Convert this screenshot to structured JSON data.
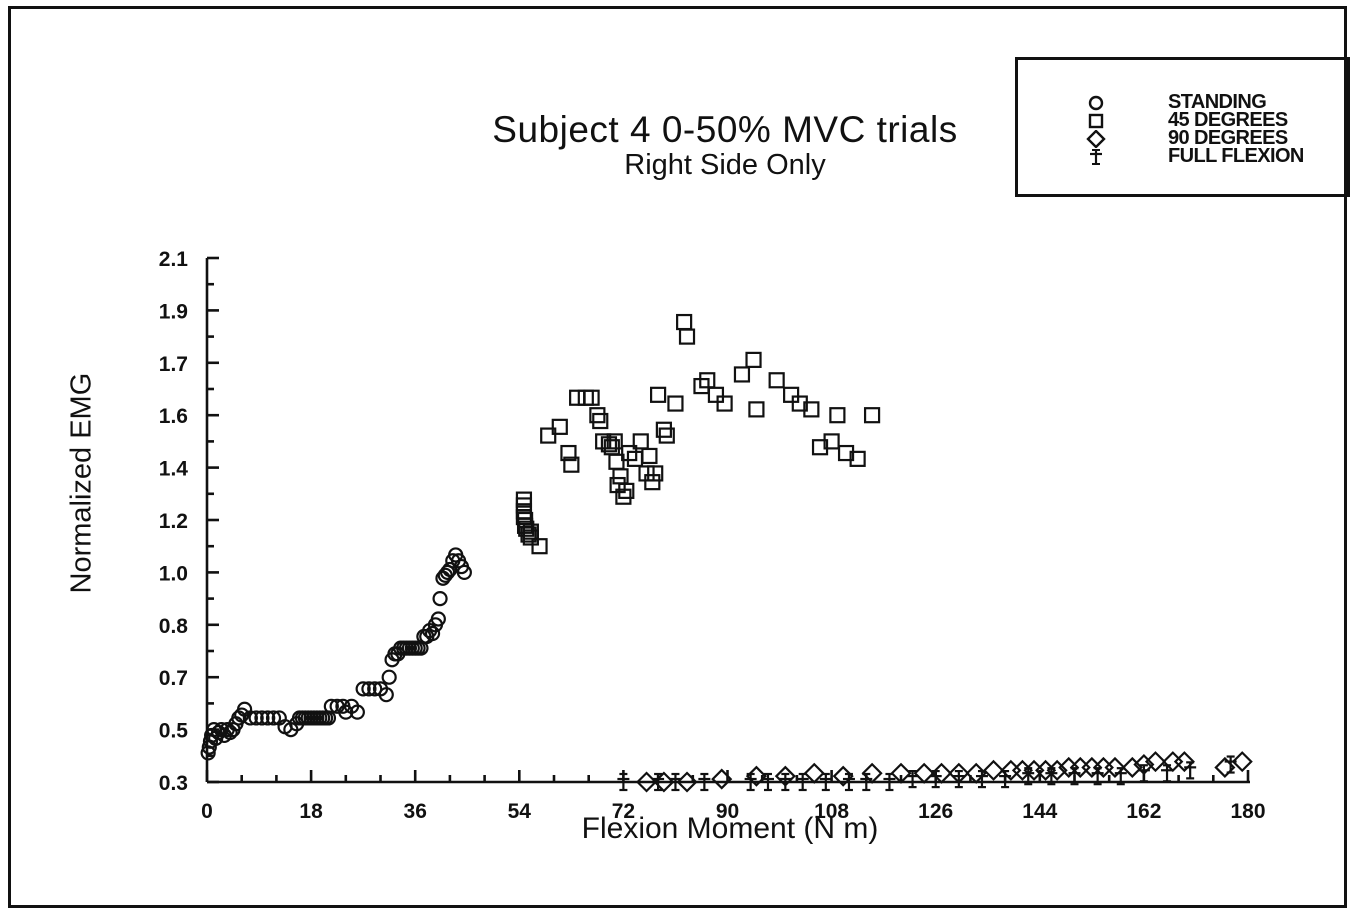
{
  "chart_data": {
    "type": "scatter",
    "title": "Subject 4  0-50% MVC trials",
    "subtitle": "Right Side Only",
    "xlabel": "Flexion Moment (N m)",
    "ylabel": "Normalized EMG",
    "xlim": [
      0,
      180
    ],
    "ylim": [
      0.3,
      2.1
    ],
    "x_ticks": [
      0,
      18,
      36,
      54,
      72,
      90,
      108,
      126,
      144,
      162,
      180
    ],
    "x_tick_labels": [
      "0",
      "18",
      "36",
      "54",
      "72",
      "90",
      "108",
      "126",
      "144",
      "162",
      "180"
    ],
    "y_tick_labels": [
      "0.3",
      "0.5",
      "0.7",
      "0.8",
      "1.0",
      "1.2",
      "1.4",
      "1.6",
      "1.7",
      "1.9",
      "2.1"
    ],
    "legend_position": "top-right",
    "series": [
      {
        "name": "STANDING",
        "marker": "circle",
        "points": [
          [
            0.2,
            0.4
          ],
          [
            0.4,
            0.42
          ],
          [
            0.6,
            0.44
          ],
          [
            0.8,
            0.46
          ],
          [
            1.2,
            0.48
          ],
          [
            1.5,
            0.45
          ],
          [
            2.0,
            0.47
          ],
          [
            2.5,
            0.48
          ],
          [
            3.0,
            0.46
          ],
          [
            3.5,
            0.48
          ],
          [
            4.0,
            0.47
          ],
          [
            4.5,
            0.48
          ],
          [
            5.0,
            0.5
          ],
          [
            5.5,
            0.52
          ],
          [
            6.0,
            0.53
          ],
          [
            6.5,
            0.55
          ],
          [
            7.5,
            0.52
          ],
          [
            8.5,
            0.52
          ],
          [
            9.5,
            0.52
          ],
          [
            10.5,
            0.52
          ],
          [
            11.5,
            0.52
          ],
          [
            12.5,
            0.52
          ],
          [
            13.5,
            0.49
          ],
          [
            14.5,
            0.48
          ],
          [
            15.5,
            0.5
          ],
          [
            16.0,
            0.52
          ],
          [
            16.5,
            0.52
          ],
          [
            17.0,
            0.52
          ],
          [
            17.5,
            0.52
          ],
          [
            18.0,
            0.52
          ],
          [
            18.5,
            0.52
          ],
          [
            19.0,
            0.52
          ],
          [
            19.5,
            0.52
          ],
          [
            20.0,
            0.52
          ],
          [
            20.5,
            0.52
          ],
          [
            21.0,
            0.52
          ],
          [
            21.5,
            0.56
          ],
          [
            22.5,
            0.56
          ],
          [
            23.5,
            0.56
          ],
          [
            24.0,
            0.54
          ],
          [
            25.0,
            0.56
          ],
          [
            26.0,
            0.54
          ],
          [
            27.0,
            0.62
          ],
          [
            28.0,
            0.62
          ],
          [
            29.0,
            0.62
          ],
          [
            30.0,
            0.62
          ],
          [
            31.0,
            0.6
          ],
          [
            31.5,
            0.66
          ],
          [
            32.0,
            0.72
          ],
          [
            32.5,
            0.74
          ],
          [
            33.0,
            0.74
          ],
          [
            33.5,
            0.76
          ],
          [
            34.0,
            0.76
          ],
          [
            34.5,
            0.76
          ],
          [
            35.0,
            0.76
          ],
          [
            35.5,
            0.76
          ],
          [
            36.0,
            0.76
          ],
          [
            36.5,
            0.76
          ],
          [
            37.0,
            0.76
          ],
          [
            37.5,
            0.8
          ],
          [
            38.0,
            0.8
          ],
          [
            38.5,
            0.82
          ],
          [
            39.0,
            0.81
          ],
          [
            39.5,
            0.84
          ],
          [
            40.0,
            0.86
          ],
          [
            40.3,
            0.93
          ],
          [
            40.8,
            1.0
          ],
          [
            41.2,
            1.01
          ],
          [
            41.6,
            1.02
          ],
          [
            42.0,
            1.03
          ],
          [
            42.5,
            1.06
          ],
          [
            43.0,
            1.08
          ],
          [
            43.5,
            1.06
          ],
          [
            44.0,
            1.04
          ],
          [
            44.5,
            1.02
          ]
        ]
      },
      {
        "name": "45 DEGREES",
        "marker": "square",
        "points": [
          [
            54.8,
            1.27
          ],
          [
            54.8,
            1.25
          ],
          [
            54.8,
            1.23
          ],
          [
            54.8,
            1.21
          ],
          [
            55.0,
            1.2
          ],
          [
            55.0,
            1.18
          ],
          [
            55.2,
            1.17
          ],
          [
            55.6,
            1.15
          ],
          [
            56.0,
            1.14
          ],
          [
            56.0,
            1.16
          ],
          [
            57.5,
            1.11
          ],
          [
            59.0,
            1.49
          ],
          [
            61.0,
            1.52
          ],
          [
            62.5,
            1.43
          ],
          [
            63.0,
            1.39
          ],
          [
            64.0,
            1.62
          ],
          [
            65.5,
            1.62
          ],
          [
            66.5,
            1.62
          ],
          [
            67.5,
            1.56
          ],
          [
            68.0,
            1.54
          ],
          [
            68.5,
            1.47
          ],
          [
            69.5,
            1.46
          ],
          [
            70.5,
            1.47
          ],
          [
            70.0,
            1.45
          ],
          [
            70.8,
            1.4
          ],
          [
            71.0,
            1.32
          ],
          [
            71.5,
            1.35
          ],
          [
            72.0,
            1.28
          ],
          [
            72.5,
            1.3
          ],
          [
            73.0,
            1.43
          ],
          [
            74.0,
            1.41
          ],
          [
            75.0,
            1.47
          ],
          [
            76.0,
            1.36
          ],
          [
            76.5,
            1.42
          ],
          [
            77.0,
            1.33
          ],
          [
            77.5,
            1.36
          ],
          [
            78.0,
            1.63
          ],
          [
            79.0,
            1.51
          ],
          [
            79.5,
            1.49
          ],
          [
            81.0,
            1.6
          ],
          [
            82.5,
            1.88
          ],
          [
            83.0,
            1.83
          ],
          [
            85.5,
            1.66
          ],
          [
            86.5,
            1.68
          ],
          [
            88.0,
            1.63
          ],
          [
            89.5,
            1.6
          ],
          [
            92.5,
            1.7
          ],
          [
            94.5,
            1.75
          ],
          [
            95.0,
            1.58
          ],
          [
            98.5,
            1.68
          ],
          [
            101.0,
            1.63
          ],
          [
            102.5,
            1.6
          ],
          [
            104.5,
            1.58
          ],
          [
            106.0,
            1.45
          ],
          [
            108.0,
            1.47
          ],
          [
            109.0,
            1.56
          ],
          [
            110.5,
            1.43
          ],
          [
            112.5,
            1.41
          ],
          [
            115.0,
            1.56
          ]
        ]
      },
      {
        "name": "90 DEGREES",
        "marker": "diamond",
        "points": [
          [
            76.0,
            0.3
          ],
          [
            79.0,
            0.3
          ],
          [
            83.0,
            0.3
          ],
          [
            89.0,
            0.31
          ],
          [
            95.0,
            0.32
          ],
          [
            100.0,
            0.32
          ],
          [
            105.0,
            0.33
          ],
          [
            110.0,
            0.32
          ],
          [
            115.0,
            0.33
          ],
          [
            120.0,
            0.33
          ],
          [
            124.0,
            0.33
          ],
          [
            127.0,
            0.33
          ],
          [
            130.0,
            0.33
          ],
          [
            133.0,
            0.33
          ],
          [
            136.0,
            0.34
          ],
          [
            139.0,
            0.34
          ],
          [
            141.0,
            0.34
          ],
          [
            143.0,
            0.34
          ],
          [
            145.0,
            0.34
          ],
          [
            147.0,
            0.34
          ],
          [
            149.0,
            0.35
          ],
          [
            151.0,
            0.35
          ],
          [
            153.0,
            0.35
          ],
          [
            155.0,
            0.35
          ],
          [
            157.0,
            0.35
          ],
          [
            160.0,
            0.35
          ],
          [
            162.0,
            0.36
          ],
          [
            164.0,
            0.37
          ],
          [
            167.0,
            0.37
          ],
          [
            169.0,
            0.37
          ],
          [
            176.0,
            0.35
          ],
          [
            179.0,
            0.37
          ]
        ]
      },
      {
        "name": "FULL FLEXION",
        "marker": "cross",
        "points": [
          [
            72.0,
            0.3
          ],
          [
            78.0,
            0.3
          ],
          [
            81.0,
            0.3
          ],
          [
            86.0,
            0.3
          ],
          [
            94.0,
            0.3
          ],
          [
            97.0,
            0.3
          ],
          [
            100.0,
            0.3
          ],
          [
            103.0,
            0.3
          ],
          [
            107.0,
            0.3
          ],
          [
            111.0,
            0.3
          ],
          [
            114.0,
            0.3
          ],
          [
            118.0,
            0.3
          ],
          [
            122.0,
            0.31
          ],
          [
            126.0,
            0.31
          ],
          [
            130.0,
            0.31
          ],
          [
            134.0,
            0.31
          ],
          [
            138.0,
            0.31
          ],
          [
            142.0,
            0.32
          ],
          [
            146.0,
            0.32
          ],
          [
            150.0,
            0.32
          ],
          [
            154.0,
            0.32
          ],
          [
            158.0,
            0.32
          ],
          [
            162.0,
            0.33
          ],
          [
            166.0,
            0.33
          ],
          [
            170.0,
            0.34
          ],
          [
            177.0,
            0.36
          ]
        ]
      }
    ]
  }
}
